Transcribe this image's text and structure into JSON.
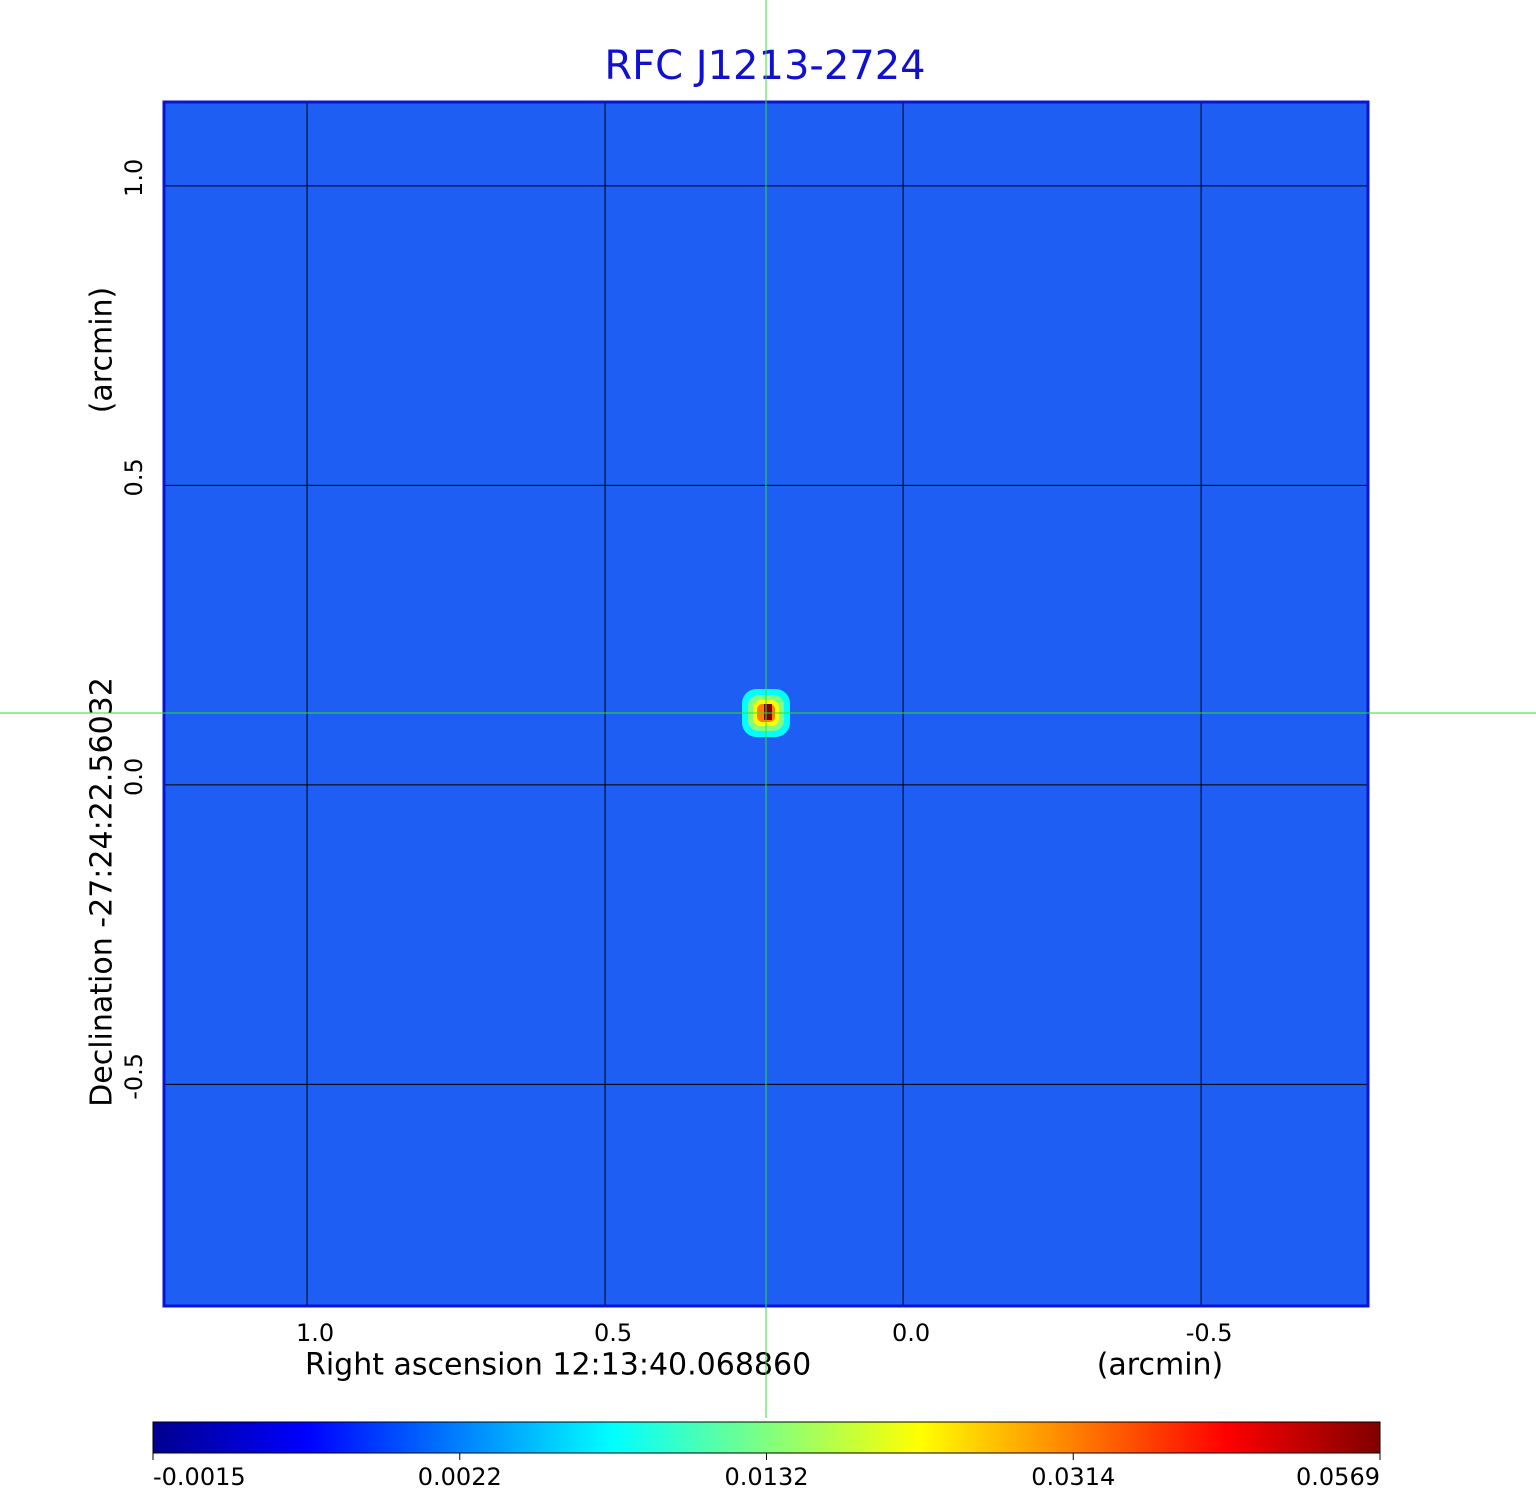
{
  "chart_data": {
    "type": "image",
    "title": "RFC J1213-2724",
    "x_label": "Right ascension  12:13:40.068860",
    "x_unit": "(arcmin)",
    "y_label": "Declination  -27:24:22.56032",
    "y_unit": "(arcmin)",
    "xlim": [
      1.24,
      -0.78
    ],
    "ylim": [
      -0.87,
      1.14
    ],
    "xticks": [
      {
        "value": 1,
        "label": "1.0"
      },
      0.5,
      {
        "value": 0,
        "label": "0.0"
      },
      -0.5
    ],
    "yticks": [
      {
        "value": 1,
        "label": "1.0"
      },
      0.5,
      {
        "value": 0,
        "label": "0.0"
      },
      -0.5
    ],
    "grid": true,
    "background_color": "#1e5ef2",
    "frame_color": "#0a14d8",
    "title_color": "#1010d0",
    "source": {
      "x": 0.23,
      "y": 0.12,
      "peak": 0.0569
    },
    "crosshair_color": "#33dd33",
    "colorbar": {
      "ticks": [
        -0.0015,
        0.0022,
        0.0132,
        0.0314,
        0.0569
      ],
      "colormap": [
        "#00008f",
        "#0000ff",
        "#0080ff",
        "#00ffff",
        "#80ff80",
        "#ffff00",
        "#ff8000",
        "#ff0000",
        "#800000"
      ]
    }
  }
}
